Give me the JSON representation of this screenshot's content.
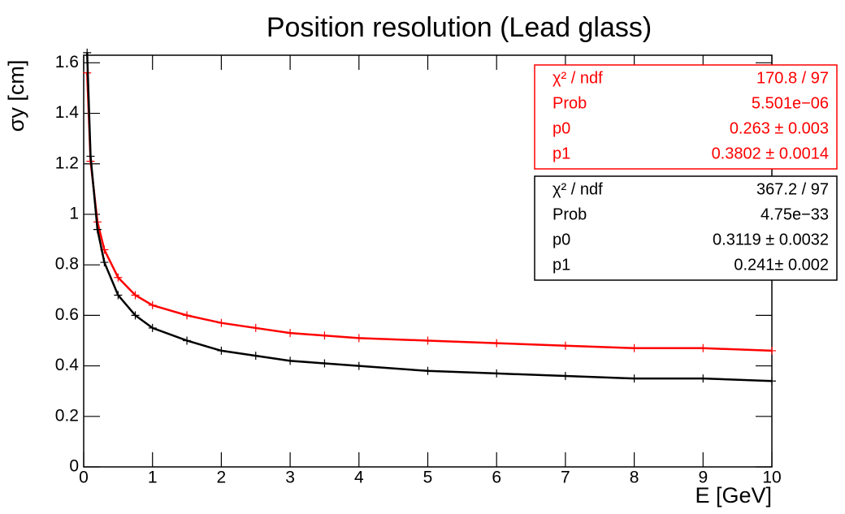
{
  "chart_data": {
    "type": "scatter",
    "title": "Position resolution (Lead glass)",
    "x_label": "E [GeV]",
    "y_label": "σy [cm]",
    "xlim": [
      0,
      10
    ],
    "ylim": [
      0,
      1.63
    ],
    "xticks": [
      0,
      1,
      2,
      3,
      4,
      5,
      6,
      7,
      8,
      9,
      10
    ],
    "yticks": [
      0,
      0.2,
      0.4,
      0.6,
      0.8,
      1,
      1.2,
      1.4,
      1.6
    ],
    "x": [
      0.05,
      0.1,
      0.2,
      0.3,
      0.5,
      0.75,
      1,
      1.5,
      2,
      2.5,
      3,
      3.5,
      4,
      5,
      6,
      7,
      8,
      9,
      10
    ],
    "series": [
      {
        "name": "red",
        "color": "#ff0000",
        "values": [
          1.56,
          1.21,
          0.97,
          0.86,
          0.75,
          0.68,
          0.64,
          0.6,
          0.57,
          0.55,
          0.53,
          0.52,
          0.51,
          0.5,
          0.49,
          0.48,
          0.47,
          0.47,
          0.46
        ]
      },
      {
        "name": "black",
        "color": "#000000",
        "values": [
          1.64,
          1.23,
          0.94,
          0.81,
          0.68,
          0.6,
          0.55,
          0.5,
          0.46,
          0.44,
          0.42,
          0.41,
          0.4,
          0.38,
          0.37,
          0.36,
          0.35,
          0.35,
          0.34
        ]
      }
    ],
    "stats": [
      {
        "color": "#ff0000",
        "rows": [
          [
            "χ² / ndf",
            "170.8 / 97"
          ],
          [
            "Prob",
            "5.501e−06"
          ],
          [
            "p0",
            "0.263 ± 0.003"
          ],
          [
            "p1",
            "0.3802 ± 0.0014"
          ]
        ]
      },
      {
        "color": "#000000",
        "rows": [
          [
            "χ² / ndf",
            "367.2 / 97"
          ],
          [
            "Prob",
            "4.75e−33"
          ],
          [
            "p0",
            "0.3119 ± 0.0032"
          ],
          [
            "p1",
            "0.241± 0.002"
          ]
        ]
      }
    ]
  }
}
